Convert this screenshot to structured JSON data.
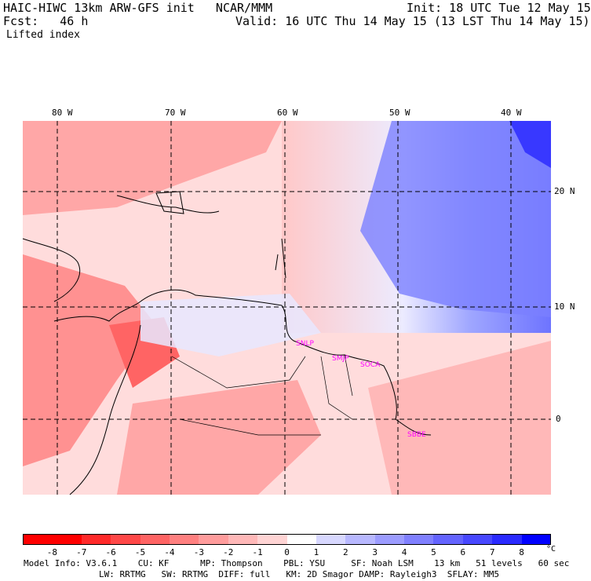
{
  "header": {
    "title": "HAIC-HIWC 13km ARW-GFS init   NCAR/MMM",
    "init": "Init: 18 UTC Tue 12 May 15",
    "fcst": "Fcst:   46 h",
    "valid": "Valid: 16 UTC Thu 14 May 15 (13 LST Thu 14 May 15)",
    "field": "Lifted index"
  },
  "lon_labels": [
    "80 W",
    "70 W",
    "60 W",
    "50 W",
    "40 W"
  ],
  "lat_labels": [
    "20 N",
    "10 N",
    "0"
  ],
  "city_labels": [
    "SNLP",
    "SMJP",
    "SOCA",
    "SBBE"
  ],
  "colorbar": {
    "ticks": [
      "-8",
      "-7",
      "-6",
      "-5",
      "-4",
      "-3",
      "-2",
      "-1",
      "0",
      "1",
      "2",
      "3",
      "4",
      "5",
      "6",
      "7",
      "8"
    ],
    "unit": "°C",
    "colors": [
      "#ff0000",
      "#ff2a2a",
      "#ff4848",
      "#ff6464",
      "#ff8080",
      "#ff9c9c",
      "#ffb8b8",
      "#ffd4d4",
      "#ffffff",
      "#d8d8ff",
      "#b8b8ff",
      "#9c9cff",
      "#8080ff",
      "#6464ff",
      "#4848ff",
      "#2a2aff",
      "#0000ff"
    ]
  },
  "footer": {
    "line1": "Model Info: V3.6.1    CU: KF      MP: Thompson    PBL: YSU     SF: Noah LSM    13 km   51 levels   60 sec",
    "line2": "LW: RRTMG   SW: RRTMG  DIFF: full   KM: 2D Smagor DAMP: Rayleigh3  SFLAY: MM5"
  }
}
